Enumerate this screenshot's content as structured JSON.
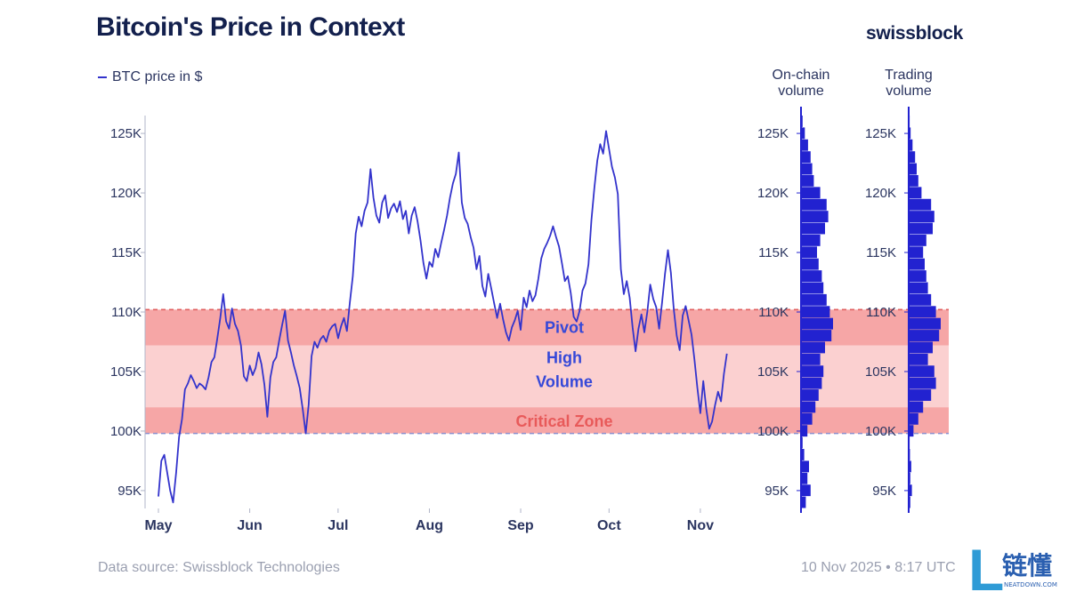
{
  "header": {
    "title": "Bitcoin's Price in Context",
    "brand": "swissblock",
    "legend_label": "BTC price in $"
  },
  "columns": {
    "onchain_title_line1": "On-chain",
    "onchain_title_line2": "volume",
    "trading_title_line1": "Trading",
    "trading_title_line2": "volume"
  },
  "footer": {
    "source": "Data source: Swissblock Technologies",
    "timestamp": "10 Nov 2025 • 8:17 UTC"
  },
  "watermark": {
    "cn_text": "链懂",
    "en_text": "NEATDOWN.COM",
    "letter": "L"
  },
  "colors": {
    "line": "#3333cc",
    "pivot_band": "#f6a6a6",
    "high_volume_band": "#fbd0d0",
    "critical_band": "#f6a6a6",
    "pivot_text": "#3548d8",
    "critical_text": "#e85a5a",
    "volume_bar": "#2222d0",
    "dashed": "#e06060"
  },
  "chart_data": {
    "type": "line",
    "title": "Bitcoin's Price in Context",
    "series_name": "BTC price in $",
    "x_axis": {
      "ticks": [
        "May",
        "Jun",
        "Jul",
        "Aug",
        "Sep",
        "Oct",
        "Nov"
      ],
      "tick_days": [
        0,
        31,
        61,
        92,
        123,
        153,
        184
      ],
      "range_days": [
        0,
        194
      ]
    },
    "y_axis": {
      "ticks": [
        95000,
        100000,
        105000,
        110000,
        115000,
        120000,
        125000
      ],
      "tick_labels": [
        "95K",
        "100K",
        "105K",
        "110K",
        "115K",
        "120K",
        "125K"
      ],
      "ylim": [
        93500,
        126500
      ]
    },
    "price_series": [
      [
        0,
        94500
      ],
      [
        1,
        97500
      ],
      [
        2,
        98000
      ],
      [
        3,
        96500
      ],
      [
        4,
        95000
      ],
      [
        5,
        94000
      ],
      [
        6,
        96500
      ],
      [
        7,
        99500
      ],
      [
        8,
        101000
      ],
      [
        9,
        103500
      ],
      [
        10,
        104000
      ],
      [
        11,
        104700
      ],
      [
        12,
        104200
      ],
      [
        13,
        103600
      ],
      [
        14,
        104000
      ],
      [
        15,
        103800
      ],
      [
        16,
        103500
      ],
      [
        17,
        104500
      ],
      [
        18,
        105800
      ],
      [
        19,
        106200
      ],
      [
        20,
        107800
      ],
      [
        21,
        109500
      ],
      [
        22,
        111500
      ],
      [
        23,
        109200
      ],
      [
        24,
        108600
      ],
      [
        25,
        110300
      ],
      [
        26,
        109000
      ],
      [
        27,
        108400
      ],
      [
        28,
        107200
      ],
      [
        29,
        104600
      ],
      [
        30,
        104200
      ],
      [
        31,
        105500
      ],
      [
        32,
        104700
      ],
      [
        33,
        105300
      ],
      [
        34,
        106600
      ],
      [
        35,
        105600
      ],
      [
        36,
        103900
      ],
      [
        37,
        101200
      ],
      [
        38,
        104500
      ],
      [
        39,
        105800
      ],
      [
        40,
        106200
      ],
      [
        41,
        107600
      ],
      [
        42,
        108900
      ],
      [
        43,
        110100
      ],
      [
        44,
        107600
      ],
      [
        45,
        106600
      ],
      [
        46,
        105500
      ],
      [
        47,
        104600
      ],
      [
        48,
        103600
      ],
      [
        49,
        101800
      ],
      [
        50,
        99800
      ],
      [
        51,
        102200
      ],
      [
        52,
        106300
      ],
      [
        53,
        107500
      ],
      [
        54,
        107000
      ],
      [
        55,
        107700
      ],
      [
        56,
        108000
      ],
      [
        57,
        107500
      ],
      [
        58,
        108400
      ],
      [
        59,
        108800
      ],
      [
        60,
        109000
      ],
      [
        61,
        107800
      ],
      [
        62,
        108800
      ],
      [
        63,
        109500
      ],
      [
        64,
        108400
      ],
      [
        65,
        110800
      ],
      [
        66,
        113000
      ],
      [
        67,
        116600
      ],
      [
        68,
        118000
      ],
      [
        69,
        117200
      ],
      [
        70,
        118500
      ],
      [
        71,
        119200
      ],
      [
        72,
        122000
      ],
      [
        73,
        119600
      ],
      [
        74,
        118100
      ],
      [
        75,
        117500
      ],
      [
        76,
        119200
      ],
      [
        77,
        119800
      ],
      [
        78,
        117900
      ],
      [
        79,
        118700
      ],
      [
        80,
        119100
      ],
      [
        81,
        118400
      ],
      [
        82,
        119300
      ],
      [
        83,
        117800
      ],
      [
        84,
        118500
      ],
      [
        85,
        116600
      ],
      [
        86,
        118100
      ],
      [
        87,
        118800
      ],
      [
        88,
        117600
      ],
      [
        89,
        116000
      ],
      [
        90,
        114100
      ],
      [
        91,
        112800
      ],
      [
        92,
        114200
      ],
      [
        93,
        113800
      ],
      [
        94,
        115300
      ],
      [
        95,
        114600
      ],
      [
        96,
        115800
      ],
      [
        97,
        116900
      ],
      [
        98,
        118100
      ],
      [
        99,
        119600
      ],
      [
        100,
        120800
      ],
      [
        101,
        121600
      ],
      [
        102,
        123400
      ],
      [
        103,
        119200
      ],
      [
        104,
        117900
      ],
      [
        105,
        117400
      ],
      [
        106,
        116300
      ],
      [
        107,
        115400
      ],
      [
        108,
        113600
      ],
      [
        109,
        114700
      ],
      [
        110,
        112200
      ],
      [
        111,
        111300
      ],
      [
        112,
        113200
      ],
      [
        113,
        112000
      ],
      [
        114,
        110700
      ],
      [
        115,
        109500
      ],
      [
        116,
        110700
      ],
      [
        117,
        109400
      ],
      [
        118,
        108300
      ],
      [
        119,
        107600
      ],
      [
        120,
        108700
      ],
      [
        121,
        109300
      ],
      [
        122,
        110100
      ],
      [
        123,
        108500
      ],
      [
        124,
        111200
      ],
      [
        125,
        110400
      ],
      [
        126,
        111800
      ],
      [
        127,
        110900
      ],
      [
        128,
        111400
      ],
      [
        129,
        112800
      ],
      [
        130,
        114500
      ],
      [
        131,
        115300
      ],
      [
        132,
        115800
      ],
      [
        133,
        116400
      ],
      [
        134,
        117200
      ],
      [
        135,
        116300
      ],
      [
        136,
        115500
      ],
      [
        137,
        114100
      ],
      [
        138,
        112600
      ],
      [
        139,
        113000
      ],
      [
        140,
        111600
      ],
      [
        141,
        109600
      ],
      [
        142,
        109200
      ],
      [
        143,
        110100
      ],
      [
        144,
        111800
      ],
      [
        145,
        112400
      ],
      [
        146,
        114000
      ],
      [
        147,
        117700
      ],
      [
        148,
        120400
      ],
      [
        149,
        122700
      ],
      [
        150,
        124100
      ],
      [
        151,
        123300
      ],
      [
        152,
        125200
      ],
      [
        153,
        123700
      ],
      [
        154,
        122200
      ],
      [
        155,
        121300
      ],
      [
        156,
        119900
      ],
      [
        157,
        113600
      ],
      [
        158,
        111500
      ],
      [
        159,
        112600
      ],
      [
        160,
        111200
      ],
      [
        161,
        108700
      ],
      [
        162,
        106700
      ],
      [
        163,
        108600
      ],
      [
        164,
        109800
      ],
      [
        165,
        108300
      ],
      [
        166,
        110000
      ],
      [
        167,
        112300
      ],
      [
        168,
        111100
      ],
      [
        169,
        110400
      ],
      [
        170,
        108600
      ],
      [
        171,
        110800
      ],
      [
        172,
        113200
      ],
      [
        173,
        115200
      ],
      [
        174,
        113300
      ],
      [
        175,
        110200
      ],
      [
        176,
        108000
      ],
      [
        177,
        106800
      ],
      [
        178,
        109700
      ],
      [
        179,
        110500
      ],
      [
        180,
        109300
      ],
      [
        181,
        108100
      ],
      [
        182,
        106000
      ],
      [
        183,
        103600
      ],
      [
        184,
        101500
      ],
      [
        185,
        104200
      ],
      [
        186,
        101900
      ],
      [
        187,
        100200
      ],
      [
        188,
        100800
      ],
      [
        189,
        102200
      ],
      [
        190,
        103300
      ],
      [
        191,
        102500
      ],
      [
        192,
        104800
      ],
      [
        193,
        106500
      ]
    ],
    "zones": [
      {
        "label": "Pivot",
        "from": 107200,
        "to": 110200
      },
      {
        "label_line1": "High",
        "label_line2": "Volume",
        "from": 102000,
        "to": 107200
      },
      {
        "label": "Critical Zone",
        "from": 99800,
        "to": 102000
      }
    ],
    "dashed_levels": [
      110200,
      99800
    ],
    "onchain_volume": {
      "price_levels": [
        94000,
        95000,
        96000,
        97000,
        98000,
        99000,
        100000,
        101000,
        102000,
        103000,
        104000,
        105000,
        106000,
        107000,
        108000,
        109000,
        110000,
        111000,
        112000,
        113000,
        114000,
        115000,
        116000,
        117000,
        118000,
        119000,
        120000,
        121000,
        122000,
        123000,
        124000,
        125000,
        126000
      ],
      "relative": [
        0.15,
        0.3,
        0.2,
        0.25,
        0.1,
        0.05,
        0.2,
        0.35,
        0.45,
        0.55,
        0.65,
        0.7,
        0.6,
        0.75,
        0.95,
        1.0,
        0.9,
        0.8,
        0.7,
        0.65,
        0.55,
        0.5,
        0.6,
        0.75,
        0.85,
        0.8,
        0.6,
        0.4,
        0.35,
        0.3,
        0.22,
        0.12,
        0.05
      ]
    },
    "trading_volume": {
      "price_levels": [
        94000,
        95000,
        96000,
        97000,
        98000,
        99000,
        100000,
        101000,
        102000,
        103000,
        104000,
        105000,
        106000,
        107000,
        108000,
        109000,
        110000,
        111000,
        112000,
        113000,
        114000,
        115000,
        116000,
        117000,
        118000,
        119000,
        120000,
        121000,
        122000,
        123000,
        124000,
        125000,
        126000
      ],
      "relative": [
        0.05,
        0.1,
        0.05,
        0.08,
        0.04,
        0.03,
        0.15,
        0.3,
        0.45,
        0.7,
        0.85,
        0.8,
        0.6,
        0.75,
        0.95,
        1.0,
        0.85,
        0.7,
        0.6,
        0.55,
        0.5,
        0.45,
        0.55,
        0.75,
        0.8,
        0.7,
        0.4,
        0.3,
        0.25,
        0.2,
        0.12,
        0.06,
        0.03
      ]
    }
  }
}
